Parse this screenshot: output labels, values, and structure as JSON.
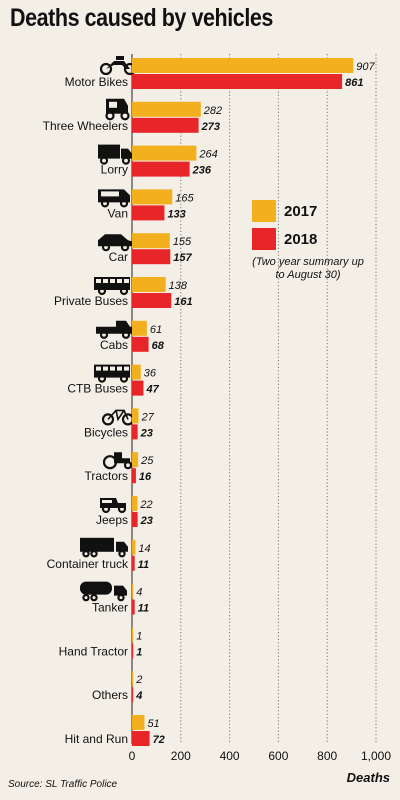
{
  "chart_data": {
    "type": "bar",
    "orientation": "horizontal",
    "title": "Deaths caused by vehicles",
    "xlabel": "Deaths",
    "xlim": [
      0,
      1000
    ],
    "xticks": [
      "0",
      "200",
      "400",
      "600",
      "800",
      "1,000"
    ],
    "categories": [
      "Motor Bikes",
      "Three Wheelers",
      "Lorry",
      "Van",
      "Car",
      "Private Buses",
      "Cabs",
      "CTB Buses",
      "Bicycles",
      "Tractors",
      "Jeeps",
      "Container truck",
      "Tanker",
      "Hand Tractor",
      "Others",
      "Hit and Run"
    ],
    "series": [
      {
        "name": "2017",
        "color": "#f2b01e",
        "values": [
          907,
          282,
          264,
          165,
          155,
          138,
          61,
          36,
          27,
          25,
          22,
          14,
          4,
          1,
          2,
          51
        ]
      },
      {
        "name": "2018",
        "color": "#e8262a",
        "values": [
          861,
          273,
          236,
          133,
          157,
          161,
          68,
          47,
          23,
          16,
          23,
          11,
          11,
          1,
          4,
          72
        ]
      }
    ],
    "value_labels": {
      "2017": [
        "907",
        "282",
        "264",
        "165",
        "155",
        "138",
        "61",
        "36",
        "27",
        "25",
        "22",
        "14",
        "4",
        "1",
        "2",
        "51"
      ],
      "2018": [
        "861",
        "273",
        "236",
        "133",
        "157",
        "161",
        "68",
        "47",
        "23",
        "16",
        "23",
        "11",
        "11",
        "1",
        "4",
        "72"
      ]
    },
    "grid": "vertical dotted",
    "legend_position": "right",
    "legend_note": "(Two year summary up to August 30)",
    "icons": [
      "motorbike-icon",
      "three-wheeler-icon",
      "lorry-icon",
      "van-icon",
      "car-icon",
      "bus-icon",
      "cab-icon",
      "bus-icon",
      "bicycle-icon",
      "tractor-icon",
      "jeep-icon",
      "container-truck-icon",
      "tanker-icon",
      "",
      "",
      ""
    ]
  },
  "source": "Source: SL Traffic Police"
}
